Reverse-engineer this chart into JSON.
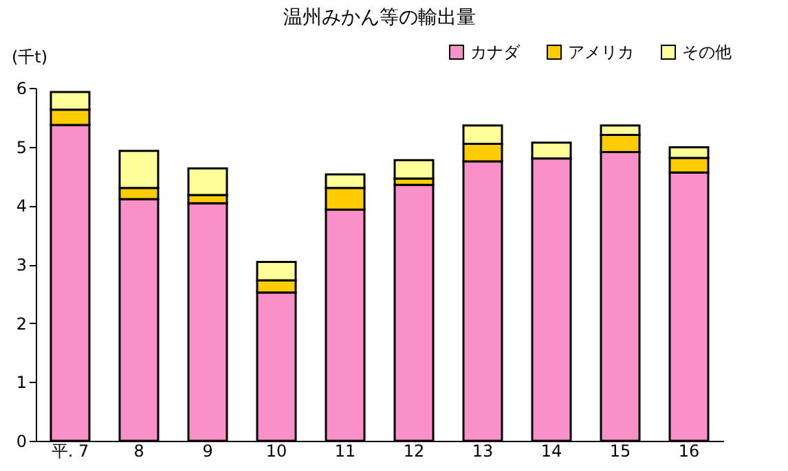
{
  "chart_data": {
    "type": "bar",
    "title": "温州みかん等の輸出量",
    "ylabel": "(千t)",
    "categories": [
      "平. 7",
      "8",
      "9",
      "10",
      "11",
      "12",
      "13",
      "14",
      "15",
      "16"
    ],
    "series": [
      {
        "name": "カナダ",
        "color": "#f990c8",
        "values": [
          5.37,
          4.11,
          4.04,
          2.52,
          3.93,
          4.35,
          4.75,
          4.8,
          4.91,
          4.56
        ]
      },
      {
        "name": "アメリカ",
        "color": "#ffcc00",
        "values": [
          0.26,
          0.19,
          0.14,
          0.21,
          0.37,
          0.11,
          0.3,
          null,
          0.29,
          0.25
        ]
      },
      {
        "name": "その他",
        "color": "#ffff99",
        "values": [
          0.3,
          0.63,
          0.45,
          0.31,
          0.23,
          0.31,
          0.31,
          0.27,
          0.16,
          0.18
        ]
      }
    ],
    "stacked": true,
    "ylim": [
      0,
      6
    ],
    "yticks": [
      0,
      1,
      2,
      3,
      4,
      5,
      6
    ],
    "grid": false,
    "legend": "top right"
  }
}
